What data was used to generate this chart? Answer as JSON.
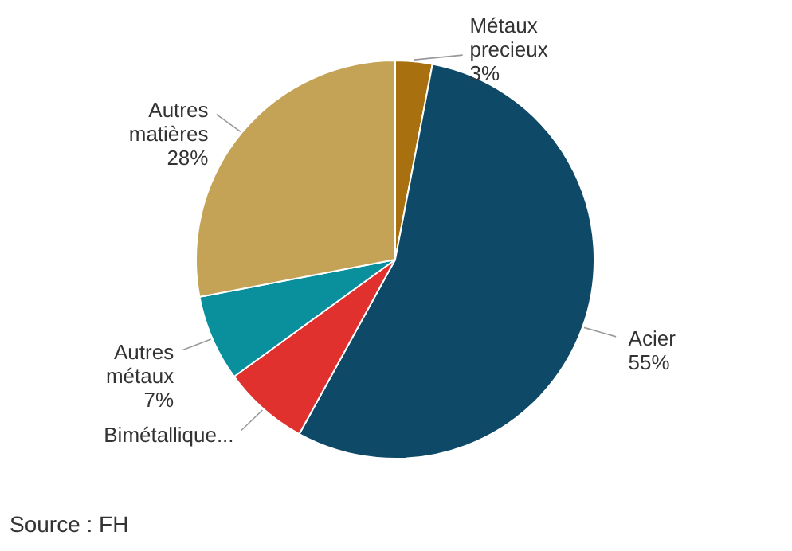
{
  "chart_data": {
    "type": "pie",
    "categories": [
      "Métaux precieux",
      "Acier",
      "Bimétallique...",
      "Autres métaux",
      "Autres matières"
    ],
    "values": [
      3,
      55,
      7,
      7,
      28
    ],
    "value_labels": [
      "3%",
      "55%",
      null,
      "7%",
      "28%"
    ],
    "colors": [
      "#a8700f",
      "#0e4a68",
      "#e0312e",
      "#0a8f9c",
      "#c4a256"
    ],
    "annotations": [
      "Source : FH"
    ]
  }
}
